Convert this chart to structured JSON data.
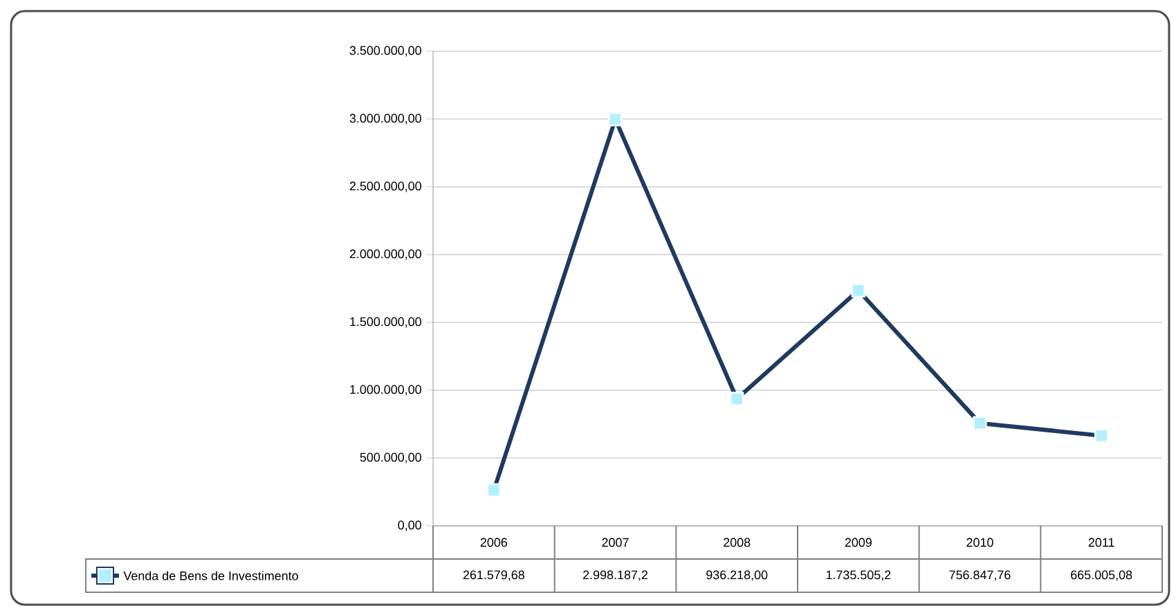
{
  "chart_data": {
    "type": "line",
    "categories": [
      "2006",
      "2007",
      "2008",
      "2009",
      "2010",
      "2011"
    ],
    "series": [
      {
        "name": "Venda de Bens de Investimento",
        "color": "#1f3a60",
        "values": [
          261579.68,
          2998187.2,
          936218.0,
          1735505.2,
          756847.76,
          665005.08
        ],
        "value_labels": [
          "261.579,68",
          "2.998.187,2",
          "936.218,00",
          "1.735.505,2",
          "756.847,76",
          "665.005,08"
        ]
      }
    ],
    "ylim": [
      0,
      3500000
    ],
    "yticks": [
      {
        "value": 0,
        "label": "0,00"
      },
      {
        "value": 500000,
        "label": "500.000,00"
      },
      {
        "value": 1000000,
        "label": "1.000.000,00"
      },
      {
        "value": 1500000,
        "label": "1.500.000,00"
      },
      {
        "value": 2000000,
        "label": "2.000.000,00"
      },
      {
        "value": 2500000,
        "label": "2.500.000,00"
      },
      {
        "value": 3000000,
        "label": "3.000.000,00"
      },
      {
        "value": 3500000,
        "label": "3.500.000,00"
      }
    ],
    "grid": "y",
    "legend": "bottom",
    "marker": "square",
    "line_style": "solid"
  }
}
